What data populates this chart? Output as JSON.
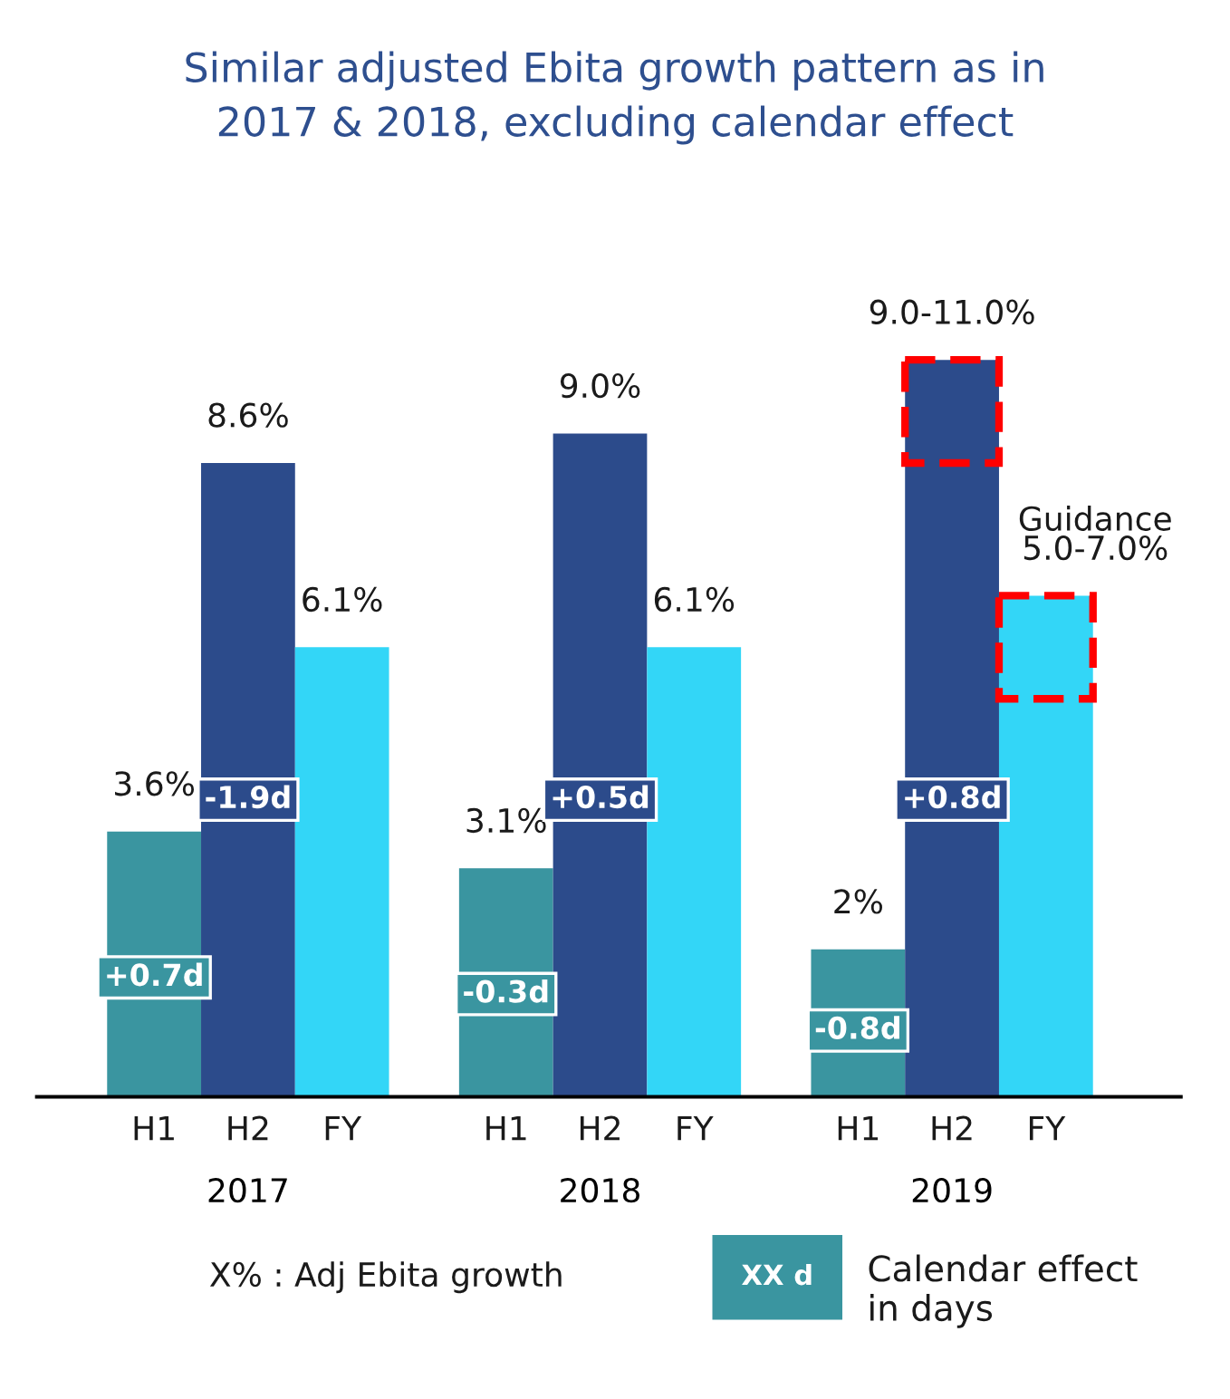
{
  "chart_data": {
    "type": "bar",
    "title": "Similar adjusted Ebita growth pattern as in\n2017 & 2018, excluding calendar effect",
    "categories": [
      "2017",
      "2018",
      "2019"
    ],
    "series": [
      {
        "name": "H1",
        "color": "#3a95a0",
        "values": [
          3.6,
          3.1,
          2
        ],
        "value_labels": [
          "3.6%",
          "3.1%",
          "2%"
        ]
      },
      {
        "name": "H2",
        "color": "#2c4b8b",
        "values": [
          8.6,
          9.0,
          10.0
        ],
        "value_labels": [
          "8.6%",
          "9.0%",
          null
        ]
      },
      {
        "name": "FY",
        "color": "#33d6f7",
        "values": [
          6.1,
          6.1,
          6.8
        ],
        "value_labels": [
          "6.1%",
          "6.1%",
          null
        ]
      }
    ],
    "annotations": [
      "+0.7d",
      "-1.9d",
      "-0.3d",
      "+0.5d",
      "-0.8d",
      "+0.8d",
      {
        "text": "9.0-11.0%",
        "x": "2019",
        "y": 10.0
      },
      "Guidance\n5.0-7.0%",
      "X% : Adj Ebita growth",
      "XX d",
      "Calendar effect\nin days"
    ],
    "grid": false,
    "legend": false
  }
}
